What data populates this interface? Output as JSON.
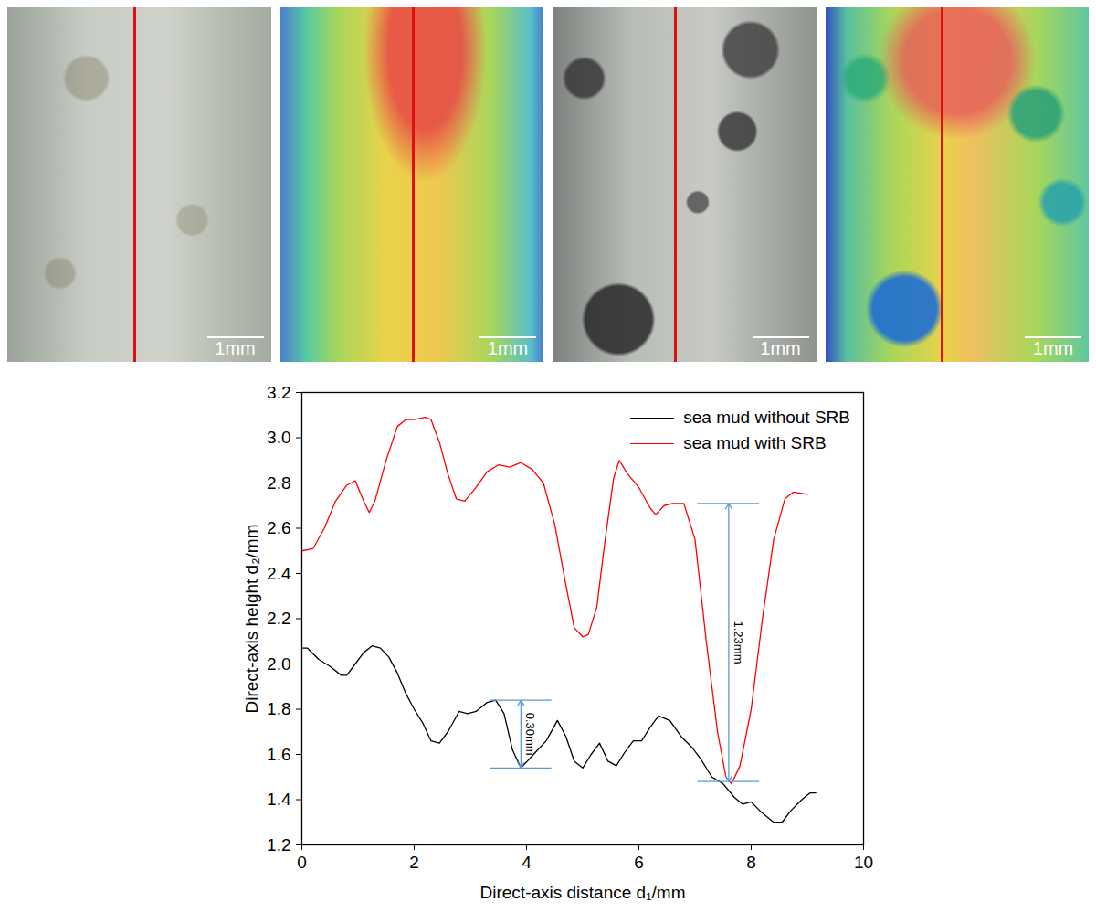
{
  "panels": [
    {
      "scale_bar": "1mm"
    },
    {
      "scale_bar": "1mm"
    },
    {
      "scale_bar": "1mm"
    },
    {
      "scale_bar": "1mm"
    }
  ],
  "chart_data": {
    "type": "line",
    "x_label": "Direct-axis distance d₁/mm",
    "y_label": "Direct-axis height d₂/mm",
    "xlim": [
      0,
      10
    ],
    "xticks": [
      0,
      2,
      4,
      6,
      8,
      10
    ],
    "ylim": [
      1.2,
      3.2
    ],
    "yticks": [
      1.2,
      1.4,
      1.6,
      1.8,
      {
        "value": 2,
        "label": "2.0"
      },
      2.2,
      2.4,
      2.6,
      2.8,
      {
        "value": 3,
        "label": "3.0"
      },
      3.2
    ],
    "legend": "upper right",
    "grid": false,
    "series": [
      {
        "name": "sea mud without SRB",
        "color": "#000000",
        "x": [
          0,
          0.1,
          0.3,
          0.5,
          0.7,
          0.8,
          0.95,
          1.1,
          1.25,
          1.4,
          1.55,
          1.7,
          1.85,
          2.0,
          2.15,
          2.3,
          2.45,
          2.6,
          2.8,
          2.95,
          3.1,
          3.3,
          3.45,
          3.6,
          3.75,
          3.9,
          4.05,
          4.2,
          4.35,
          4.55,
          4.7,
          4.85,
          5.0,
          5.15,
          5.3,
          5.45,
          5.6,
          5.75,
          5.9,
          6.05,
          6.2,
          6.35,
          6.55,
          6.75,
          6.95,
          7.1,
          7.3,
          7.5,
          7.7,
          7.85,
          8.0,
          8.2,
          8.4,
          8.55,
          8.7,
          8.9,
          9.05,
          9.15
        ],
        "values": [
          2.07,
          2.07,
          2.02,
          1.99,
          1.95,
          1.95,
          2.0,
          2.05,
          2.08,
          2.07,
          2.03,
          1.96,
          1.87,
          1.8,
          1.74,
          1.66,
          1.65,
          1.7,
          1.79,
          1.78,
          1.79,
          1.83,
          1.84,
          1.78,
          1.62,
          1.54,
          1.58,
          1.62,
          1.66,
          1.75,
          1.68,
          1.57,
          1.54,
          1.6,
          1.65,
          1.57,
          1.55,
          1.61,
          1.66,
          1.66,
          1.72,
          1.77,
          1.75,
          1.68,
          1.63,
          1.58,
          1.5,
          1.47,
          1.41,
          1.38,
          1.39,
          1.34,
          1.3,
          1.3,
          1.35,
          1.4,
          1.43,
          1.43
        ]
      },
      {
        "name": "sea mud with SRB",
        "color": "#ff0000",
        "x": [
          0,
          0.2,
          0.4,
          0.6,
          0.8,
          0.95,
          1.1,
          1.2,
          1.3,
          1.5,
          1.7,
          1.85,
          2.0,
          2.2,
          2.3,
          2.45,
          2.6,
          2.75,
          2.9,
          3.1,
          3.3,
          3.5,
          3.7,
          3.9,
          4.1,
          4.3,
          4.5,
          4.7,
          4.85,
          5.0,
          5.1,
          5.25,
          5.4,
          5.55,
          5.65,
          5.8,
          6.0,
          6.2,
          6.3,
          6.45,
          6.6,
          6.8,
          7.0,
          7.2,
          7.4,
          7.55,
          7.65,
          7.8,
          8.0,
          8.2,
          8.4,
          8.6,
          8.75,
          9.0
        ],
        "values": [
          2.5,
          2.51,
          2.6,
          2.72,
          2.79,
          2.81,
          2.72,
          2.67,
          2.72,
          2.9,
          3.05,
          3.08,
          3.08,
          3.09,
          3.08,
          2.98,
          2.84,
          2.73,
          2.72,
          2.78,
          2.85,
          2.88,
          2.87,
          2.89,
          2.86,
          2.8,
          2.62,
          2.35,
          2.16,
          2.12,
          2.13,
          2.25,
          2.55,
          2.82,
          2.9,
          2.84,
          2.78,
          2.69,
          2.66,
          2.7,
          2.71,
          2.71,
          2.55,
          2.1,
          1.7,
          1.5,
          1.47,
          1.55,
          1.8,
          2.2,
          2.55,
          2.73,
          2.76,
          2.75
        ]
      }
    ],
    "annotations": [
      {
        "label": "0.30mm",
        "x": 3.9,
        "y1": 1.84,
        "y2": 1.54,
        "color": "#5b9bd5"
      },
      {
        "label": "1.23mm",
        "x": 7.6,
        "y1": 2.71,
        "y2": 1.48,
        "color": "#5b9bd5"
      }
    ]
  }
}
